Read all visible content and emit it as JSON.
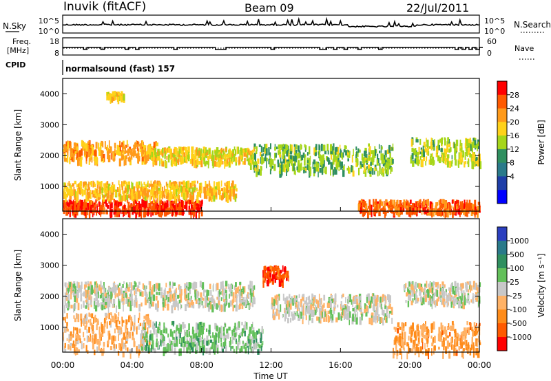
{
  "header": {
    "station": "Inuvik (fitACF)",
    "beam": "Beam 09",
    "date": "22/Jul/2011"
  },
  "top_panel": {
    "left_label": "N.Sky",
    "left_ticks": [
      "10^5",
      "10^0"
    ],
    "right_label": "N.Search",
    "right_ticks": [
      "10^5",
      "10^0"
    ]
  },
  "freq_panel": {
    "left_label_1": "Freq.",
    "left_label_2": "[MHz]",
    "left_ticks": [
      "18",
      "8"
    ],
    "right_label": "Nave",
    "right_ticks": [
      "60",
      "0"
    ]
  },
  "cpid_panel": {
    "label": "CPID",
    "text": "normalsound (fast) 157"
  },
  "axes": {
    "ylabel": "Slant Range [km]",
    "xlabel": "Time UT",
    "xticks": [
      "00:00",
      "04:00",
      "08:00",
      "12:00",
      "16:00",
      "20:00",
      "00:00"
    ],
    "yticks": [
      "1000",
      "2000",
      "3000",
      "4000"
    ]
  },
  "power_colorbar": {
    "label": "Power [dB]",
    "ticks": [
      "28",
      "24",
      "20",
      "16",
      "12",
      "8",
      "4"
    ],
    "colors": [
      "#ff0000",
      "#ff5a00",
      "#ff9a1a",
      "#ffd21a",
      "#a6d61a",
      "#2f8f5f",
      "#2a7a8a",
      "#1e3ea8",
      "#0000ff"
    ]
  },
  "velocity_colorbar": {
    "label": "Velocity [m s⁻¹]",
    "ticks": [
      "1000",
      "500",
      "100",
      "25",
      "-25",
      "-100",
      "-500",
      "-1000"
    ],
    "colors": [
      "#2b3fbf",
      "#2a7a8a",
      "#2f8f5f",
      "#63c05a",
      "#c8c8c8",
      "#ffb266",
      "#ff8c1a",
      "#ff5a00",
      "#ff0000"
    ]
  },
  "chart_data": [
    {
      "type": "line",
      "panel": "N.Sky / N.Search",
      "x_range": [
        "00:00",
        "24:00"
      ],
      "yscale": "log",
      "ylim": [
        1,
        100000
      ]
    },
    {
      "type": "line",
      "panel": "Freq. / Nave",
      "ylim_left": [
        8,
        18
      ],
      "ylim_right": [
        0,
        60
      ]
    },
    {
      "type": "heatmap",
      "panel": "Power",
      "xlabel": "Time UT",
      "ylabel": "Slant Range [km]",
      "x_range_hours": [
        0,
        24
      ],
      "ylim": [
        200,
        4500
      ],
      "color_scale": "Power [dB]",
      "cmin": 0,
      "cmax": 30,
      "bands": [
        {
          "t0": 0.0,
          "t1": 5.5,
          "r0": 1900,
          "r1": 2500,
          "value": 22
        },
        {
          "t0": 0.0,
          "t1": 8.0,
          "r0": 200,
          "r1": 600,
          "value": 28
        },
        {
          "t0": 0.0,
          "t1": 10.0,
          "r0": 700,
          "r1": 1200,
          "value": 20
        },
        {
          "t0": 5.0,
          "t1": 11.0,
          "r0": 1800,
          "r1": 2300,
          "value": 18
        },
        {
          "t0": 11.0,
          "t1": 19.0,
          "r0": 1500,
          "r1": 2400,
          "value": 14
        },
        {
          "t0": 17.0,
          "t1": 24.0,
          "r0": 200,
          "r1": 600,
          "value": 26
        },
        {
          "t0": 20.0,
          "t1": 24.0,
          "r0": 1800,
          "r1": 2600,
          "value": 16
        },
        {
          "t0": 2.5,
          "t1": 3.5,
          "r0": 3900,
          "r1": 4100,
          "value": 20
        }
      ]
    },
    {
      "type": "heatmap",
      "panel": "Velocity",
      "xlabel": "Time UT",
      "ylabel": "Slant Range [km]",
      "x_range_hours": [
        0,
        24
      ],
      "ylim": [
        200,
        4500
      ],
      "color_scale": "Velocity [m s⁻¹]",
      "cmin": -1000,
      "cmax": 1000,
      "bands": [
        {
          "t0": 0.0,
          "t1": 5.0,
          "r0": 200,
          "r1": 1500,
          "value": -300
        },
        {
          "t0": 0.0,
          "t1": 11.0,
          "r0": 1700,
          "r1": 2500,
          "value": 0
        },
        {
          "t0": 4.5,
          "t1": 11.5,
          "r0": 300,
          "r1": 1200,
          "value": 200
        },
        {
          "t0": 12.0,
          "t1": 19.0,
          "r0": 1300,
          "r1": 2100,
          "value": 0
        },
        {
          "t0": 19.0,
          "t1": 24.0,
          "r0": 200,
          "r1": 1200,
          "value": -400
        },
        {
          "t0": 19.5,
          "t1": 24.0,
          "r0": 1800,
          "r1": 2500,
          "value": 0
        },
        {
          "t0": 11.5,
          "t1": 13.0,
          "r0": 2500,
          "r1": 3000,
          "value": -800
        }
      ]
    }
  ]
}
